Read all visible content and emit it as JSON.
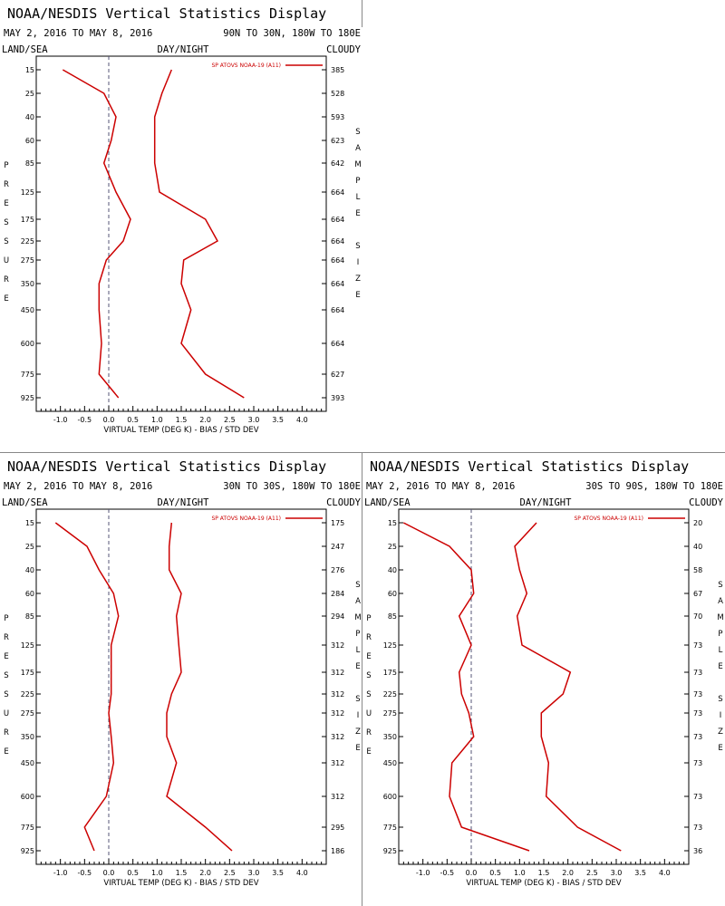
{
  "colors": {
    "series": "#cc0000",
    "axis": "#000000",
    "zero_line": "#555577"
  },
  "chart_data": [
    {
      "type": "line",
      "title": "NOAA/NESDIS Vertical Statistics Display",
      "date_range": "MAY 2, 2016 TO MAY 8, 2016",
      "region": "90N TO 30N, 180W TO 180E",
      "labels": {
        "left": "LAND/SEA",
        "center": "DAY/NIGHT",
        "right": "CLOUDY"
      },
      "legend": "SP ATOVS NOAA-19 (A11)",
      "xlabel": "VIRTUAL TEMP (DEG K) - BIAS / STD DEV",
      "ylabel": "PRESSURE",
      "y2label": "SAMPLE SIZE",
      "xlim": [
        -1.5,
        4.5
      ],
      "x_ticks": [
        "-1.0",
        "-0.5",
        "0.0",
        "0.5",
        "1.0",
        "1.5",
        "2.0",
        "2.5",
        "3.0",
        "3.5",
        "4.0"
      ],
      "pressure_levels": [
        "15",
        "25",
        "40",
        "60",
        "85",
        "125",
        "175",
        "225",
        "275",
        "350",
        "450",
        "600",
        "775",
        "925"
      ],
      "sample_size": [
        "385",
        "528",
        "593",
        "623",
        "642",
        "664",
        "664",
        "664",
        "664",
        "664",
        "664",
        "664",
        "627",
        "393"
      ],
      "series": [
        {
          "name": "BIAS",
          "values": [
            -0.95,
            -0.1,
            0.15,
            0.05,
            -0.1,
            0.15,
            0.45,
            0.3,
            -0.05,
            -0.2,
            -0.2,
            -0.15,
            -0.2,
            0.2
          ]
        },
        {
          "name": "STD DEV",
          "values": [
            1.3,
            1.1,
            0.95,
            0.95,
            0.95,
            1.05,
            2.0,
            2.25,
            1.55,
            1.5,
            1.7,
            1.5,
            2.0,
            2.8
          ]
        }
      ]
    },
    {
      "type": "line",
      "title": "NOAA/NESDIS Vertical Statistics Display",
      "date_range": "MAY 2, 2016 TO MAY 8, 2016",
      "region": "30N TO 30S, 180W TO 180E",
      "labels": {
        "left": "LAND/SEA",
        "center": "DAY/NIGHT",
        "right": "CLOUDY"
      },
      "legend": "SP ATOVS NOAA-19 (A11)",
      "xlabel": "VIRTUAL TEMP (DEG K) - BIAS / STD DEV",
      "ylabel": "PRESSURE",
      "y2label": "SAMPLE SIZE",
      "xlim": [
        -1.5,
        4.5
      ],
      "x_ticks": [
        "-1.0",
        "-0.5",
        "0.0",
        "0.5",
        "1.0",
        "1.5",
        "2.0",
        "2.5",
        "3.0",
        "3.5",
        "4.0"
      ],
      "pressure_levels": [
        "15",
        "25",
        "40",
        "60",
        "85",
        "125",
        "175",
        "225",
        "275",
        "350",
        "450",
        "600",
        "775",
        "925"
      ],
      "sample_size": [
        "175",
        "247",
        "276",
        "284",
        "294",
        "312",
        "312",
        "312",
        "312",
        "312",
        "312",
        "312",
        "295",
        "186"
      ],
      "series": [
        {
          "name": "BIAS",
          "values": [
            -1.1,
            -0.45,
            -0.2,
            0.1,
            0.2,
            0.05,
            0.05,
            0.05,
            0.0,
            0.05,
            0.1,
            -0.05,
            -0.5,
            -0.3
          ]
        },
        {
          "name": "STD DEV",
          "values": [
            1.3,
            1.25,
            1.25,
            1.5,
            1.4,
            1.45,
            1.5,
            1.3,
            1.2,
            1.2,
            1.4,
            1.2,
            2.0,
            2.55
          ]
        }
      ]
    },
    {
      "type": "line",
      "title": "NOAA/NESDIS Vertical Statistics Display",
      "date_range": "MAY 2, 2016 TO MAY 8, 2016",
      "region": "30S TO 90S, 180W TO 180E",
      "labels": {
        "left": "LAND/SEA",
        "center": "DAY/NIGHT",
        "right": "CLOUDY"
      },
      "legend": "SP ATOVS NOAA-19 (A11)",
      "xlabel": "VIRTUAL TEMP (DEG K) - BIAS / STD DEV",
      "ylabel": "PRESSURE",
      "y2label": "SAMPLE SIZE",
      "xlim": [
        -1.5,
        4.5
      ],
      "x_ticks": [
        "-1.0",
        "-0.5",
        "0.0",
        "0.5",
        "1.0",
        "1.5",
        "2.0",
        "2.5",
        "3.0",
        "3.5",
        "4.0"
      ],
      "pressure_levels": [
        "15",
        "25",
        "40",
        "60",
        "85",
        "125",
        "175",
        "225",
        "275",
        "350",
        "450",
        "600",
        "775",
        "925"
      ],
      "sample_size": [
        "20",
        "40",
        "58",
        "67",
        "70",
        "73",
        "73",
        "73",
        "73",
        "73",
        "73",
        "73",
        "73",
        "36"
      ],
      "series": [
        {
          "name": "BIAS",
          "values": [
            -1.4,
            -0.45,
            0.0,
            0.05,
            -0.25,
            0.0,
            -0.25,
            -0.2,
            -0.05,
            0.05,
            -0.4,
            -0.45,
            -0.2,
            1.2
          ]
        },
        {
          "name": "STD DEV",
          "values": [
            1.35,
            0.9,
            1.0,
            1.15,
            0.95,
            1.05,
            2.05,
            1.9,
            1.45,
            1.45,
            1.6,
            1.55,
            2.2,
            3.1
          ]
        }
      ]
    }
  ]
}
